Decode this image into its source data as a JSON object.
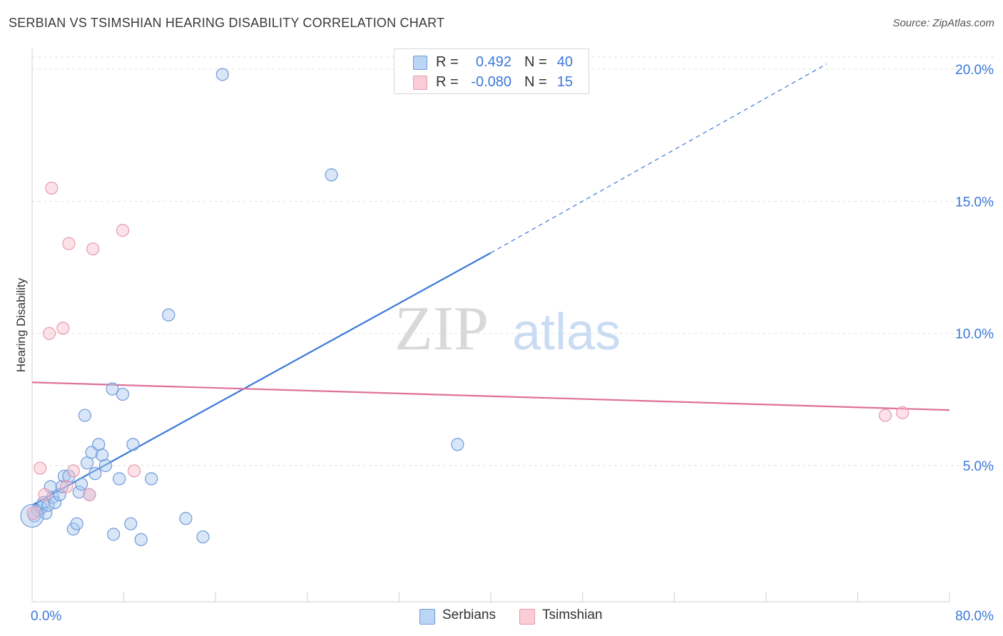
{
  "header": {
    "title": "SERBIAN VS TSIMSHIAN HEARING DISABILITY CORRELATION CHART",
    "source": "Source: ZipAtlas.com"
  },
  "watermark": {
    "zip": "ZIP",
    "atlas": "atlas"
  },
  "legend": {
    "rows": [
      {
        "r_label": "R =",
        "r_value": "0.492",
        "n_label": "N =",
        "n_value": "40",
        "color": "#a9c8f0",
        "border": "#5b8fd6"
      },
      {
        "r_label": "R =",
        "r_value": "-0.080",
        "n_label": "N =",
        "n_value": "15",
        "color": "#f7bccb",
        "border": "#e88ba6"
      }
    ]
  },
  "bottom_legend": {
    "serbians": "Serbians",
    "tsimshian": "Tsimshian"
  },
  "chart_data": {
    "type": "scatter",
    "title": "SERBIAN VS TSIMSHIAN HEARING DISABILITY CORRELATION CHART",
    "xlabel": "",
    "ylabel": "Hearing Disability",
    "xlim": [
      0,
      80
    ],
    "ylim": [
      0,
      20.5
    ],
    "x_tick_labels": [
      "0.0%",
      "80.0%"
    ],
    "y_ticks": [
      5,
      10,
      15,
      20
    ],
    "y_tick_labels": [
      "5.0%",
      "10.0%",
      "15.0%",
      "20.0%"
    ],
    "grid": true,
    "legend_position": "top-center",
    "colors": {
      "serbians": "#3b78d8",
      "tsimshian": "#e0709a"
    },
    "series": [
      {
        "name": "Serbians",
        "points": [
          [
            0.2,
            3.1
          ],
          [
            0.5,
            3.3
          ],
          [
            0.8,
            3.4
          ],
          [
            1.0,
            3.6
          ],
          [
            1.2,
            3.2
          ],
          [
            1.4,
            3.5
          ],
          [
            1.6,
            4.2
          ],
          [
            1.8,
            3.8
          ],
          [
            2.0,
            3.6
          ],
          [
            2.4,
            3.9
          ],
          [
            2.6,
            4.2
          ],
          [
            2.8,
            4.6
          ],
          [
            3.2,
            4.6
          ],
          [
            3.6,
            2.6
          ],
          [
            3.9,
            2.8
          ],
          [
            4.1,
            4.0
          ],
          [
            4.3,
            4.3
          ],
          [
            4.6,
            6.9
          ],
          [
            4.8,
            5.1
          ],
          [
            5.0,
            3.9
          ],
          [
            5.2,
            5.5
          ],
          [
            5.5,
            4.7
          ],
          [
            5.8,
            5.8
          ],
          [
            6.1,
            5.4
          ],
          [
            6.4,
            5.0
          ],
          [
            7.0,
            7.9
          ],
          [
            7.1,
            2.4
          ],
          [
            7.6,
            4.5
          ],
          [
            7.9,
            7.7
          ],
          [
            8.6,
            2.8
          ],
          [
            8.8,
            5.8
          ],
          [
            9.5,
            2.2
          ],
          [
            10.4,
            4.5
          ],
          [
            11.9,
            10.7
          ],
          [
            13.4,
            3.0
          ],
          [
            14.9,
            2.3
          ],
          [
            16.6,
            19.8
          ],
          [
            26.1,
            16.0
          ],
          [
            37.1,
            5.8
          ],
          [
            0.0,
            3.1
          ]
        ]
      },
      {
        "name": "Tsimshian",
        "points": [
          [
            0.1,
            3.2
          ],
          [
            0.7,
            4.9
          ],
          [
            1.1,
            3.9
          ],
          [
            1.5,
            10.0
          ],
          [
            1.7,
            15.5
          ],
          [
            2.7,
            10.2
          ],
          [
            3.0,
            4.2
          ],
          [
            3.2,
            13.4
          ],
          [
            3.6,
            4.8
          ],
          [
            5.0,
            3.9
          ],
          [
            5.3,
            13.2
          ],
          [
            7.9,
            13.9
          ],
          [
            8.9,
            4.8
          ],
          [
            74.4,
            6.9
          ],
          [
            75.9,
            7.0
          ]
        ]
      }
    ],
    "trend_lines": [
      {
        "series": "Serbians",
        "x": [
          0,
          40
        ],
        "y": [
          3.5,
          13.05
        ],
        "dashed_extension_to": [
          69.3,
          20.2
        ]
      },
      {
        "series": "Tsimshian",
        "x": [
          0,
          80
        ],
        "y": [
          8.15,
          7.1
        ]
      }
    ]
  }
}
